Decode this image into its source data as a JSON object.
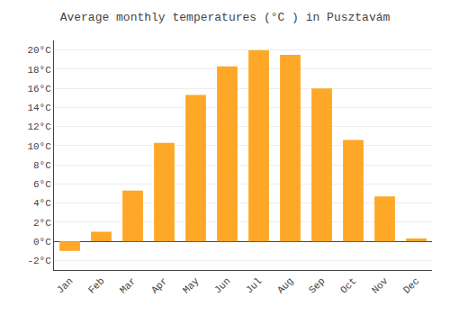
{
  "chart_data": {
    "type": "bar",
    "title": "Average monthly temperatures (°C ) in Pusztavám",
    "categories": [
      "Jan",
      "Feb",
      "Mar",
      "Apr",
      "May",
      "Jun",
      "Jul",
      "Aug",
      "Sep",
      "Oct",
      "Nov",
      "Dec"
    ],
    "values": [
      -1.0,
      1.0,
      5.3,
      10.3,
      15.3,
      18.3,
      20.0,
      19.5,
      16.0,
      10.6,
      4.7,
      0.3
    ],
    "color": "#FFA726",
    "ylim": [
      -3,
      21
    ],
    "yticks": [
      {
        "value": -2,
        "label": "-2°C"
      },
      {
        "value": 0,
        "label": "0°C"
      },
      {
        "value": 2,
        "label": "2°C"
      },
      {
        "value": 4,
        "label": "4°C"
      },
      {
        "value": 6,
        "label": "6°C"
      },
      {
        "value": 8,
        "label": "8°C"
      },
      {
        "value": 10,
        "label": "10°C"
      },
      {
        "value": 12,
        "label": "12°C"
      },
      {
        "value": 14,
        "label": "14°C"
      },
      {
        "value": 16,
        "label": "16°C"
      },
      {
        "value": 18,
        "label": "18°C"
      },
      {
        "value": 20,
        "label": "20°C"
      }
    ],
    "grid": true
  }
}
